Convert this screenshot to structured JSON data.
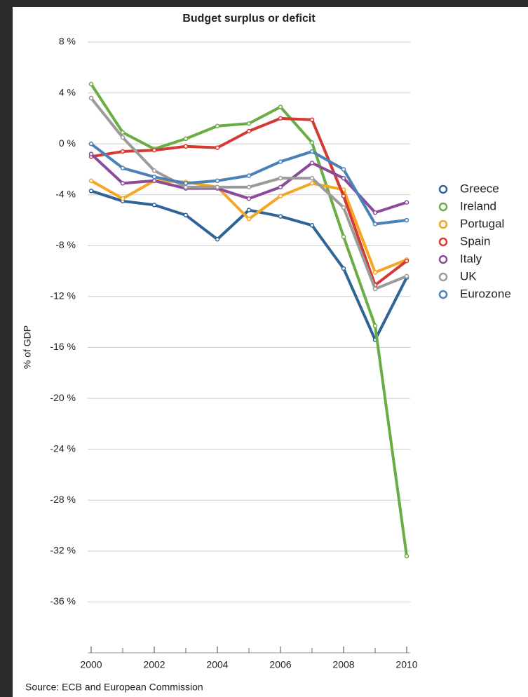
{
  "chart_data": {
    "type": "line",
    "title": "Budget surplus or deficit",
    "y_label": "% of GDP",
    "source": "Source: ECB and European Commission",
    "x": [
      2000,
      2001,
      2002,
      2003,
      2004,
      2005,
      2006,
      2007,
      2008,
      2009,
      2010
    ],
    "xlim": [
      2000,
      2010
    ],
    "xticks": [
      2000,
      2002,
      2004,
      2006,
      2008,
      2010
    ],
    "ylim": [
      -40,
      8
    ],
    "yticks": [
      {
        "value": -36,
        "label": "-36 %"
      },
      {
        "value": -32,
        "label": "-32 %"
      },
      {
        "value": -28,
        "label": "-28 %"
      },
      {
        "value": -24,
        "label": "-24 %"
      },
      {
        "value": -20,
        "label": "-20 %"
      },
      {
        "value": -16,
        "label": "-16 %"
      },
      {
        "value": -12,
        "label": "-12 %"
      },
      {
        "value": -8,
        "label": "-8 %"
      },
      {
        "value": -4,
        "label": "-4 %"
      },
      {
        "value": 0,
        "label": "0 %"
      },
      {
        "value": 4,
        "label": "4 %"
      },
      {
        "value": 8,
        "label": "8 %"
      }
    ],
    "grid": true,
    "legend": "right",
    "series": [
      {
        "name": "Greece",
        "color": "#2e6496",
        "values": [
          -3.7,
          -4.5,
          -4.8,
          -5.6,
          -7.5,
          -5.2,
          -5.7,
          -6.4,
          -9.8,
          -15.4,
          -10.5
        ]
      },
      {
        "name": "Ireland",
        "color": "#6aad44",
        "values": [
          4.7,
          0.9,
          -0.4,
          0.4,
          1.4,
          1.6,
          2.9,
          0.1,
          -7.3,
          -14.3,
          -32.4
        ]
      },
      {
        "name": "Portugal",
        "color": "#f5a623",
        "values": [
          -2.9,
          -4.3,
          -2.9,
          -3.0,
          -3.4,
          -5.9,
          -4.1,
          -3.1,
          -3.6,
          -10.1,
          -9.1
        ]
      },
      {
        "name": "Spain",
        "color": "#d43a33",
        "values": [
          -1.0,
          -0.6,
          -0.5,
          -0.2,
          -0.3,
          1.0,
          2.0,
          1.9,
          -4.1,
          -11.1,
          -9.2
        ]
      },
      {
        "name": "Italy",
        "color": "#8b4a9c",
        "values": [
          -0.8,
          -3.1,
          -2.9,
          -3.5,
          -3.5,
          -4.3,
          -3.4,
          -1.5,
          -2.7,
          -5.4,
          -4.6
        ]
      },
      {
        "name": "UK",
        "color": "#9b9b9b",
        "values": [
          3.6,
          0.5,
          -2.1,
          -3.4,
          -3.4,
          -3.4,
          -2.7,
          -2.7,
          -5.0,
          -11.4,
          -10.4
        ]
      },
      {
        "name": "Eurozone",
        "color": "#4a82b8",
        "values": [
          0.0,
          -1.9,
          -2.6,
          -3.1,
          -2.9,
          -2.5,
          -1.4,
          -0.6,
          -2.0,
          -6.3,
          -6.0
        ]
      }
    ]
  }
}
